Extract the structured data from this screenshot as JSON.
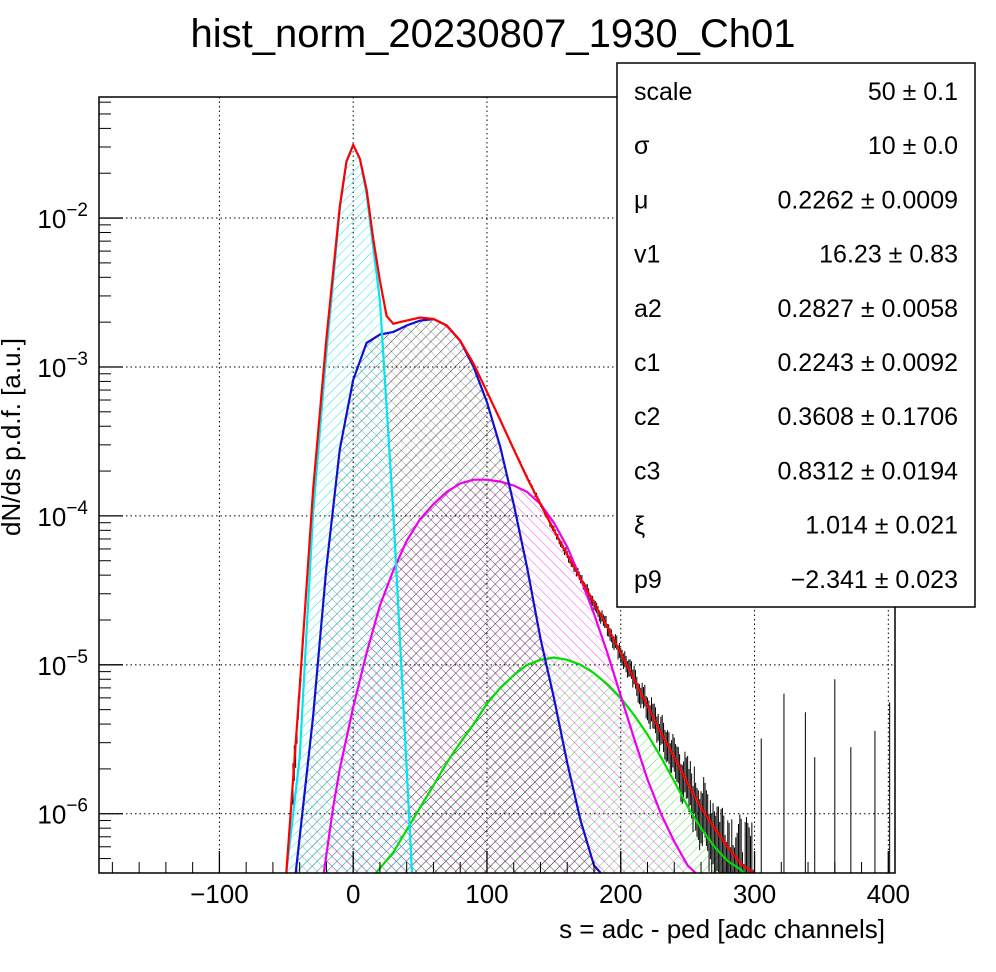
{
  "title": "hist_norm_20230807_1930_Ch01",
  "colors": {
    "total_fit": "#ff0000",
    "pedestal": "#00e5ee",
    "one_pe": "#1010d0",
    "two_pe": "#ee00ee",
    "three_pe": "#00dd00",
    "data": "#000000"
  },
  "chart_data": {
    "type": "scatter",
    "title": "hist_norm_20230807_1930_Ch01",
    "xlabel": "s = adc - ped [adc channels]",
    "ylabel": "dN/ds p.d.f. [a.u.]",
    "xlim": [
      -190,
      405
    ],
    "ylim": [
      4e-07,
      0.065
    ],
    "yscale": "log",
    "grid": true,
    "x_ticks": [
      "−100",
      "0",
      "100",
      "200",
      "300",
      "400"
    ],
    "x_tick_values": [
      -100,
      0,
      100,
      200,
      300,
      400
    ],
    "y_ticks": [
      {
        "value": 0.01,
        "base": "10",
        "exp": "−2"
      },
      {
        "value": 0.001,
        "base": "10",
        "exp": "−3"
      },
      {
        "value": 0.0001,
        "base": "10",
        "exp": "−4"
      },
      {
        "value": 1e-05,
        "base": "10",
        "exp": "−5"
      },
      {
        "value": 1e-06,
        "base": "10",
        "exp": "−6"
      }
    ],
    "series": [
      {
        "key": "pedestal",
        "x": [
          -50,
          -40,
          -30,
          -20,
          -10,
          -5,
          0,
          5,
          10,
          20,
          30,
          40,
          44
        ],
        "values": [
          4e-07,
          2.4e-06,
          0.000105,
          0.00125,
          0.0115,
          0.024,
          0.031,
          0.025,
          0.0145,
          0.0028,
          0.000105,
          2e-06,
          4e-07
        ]
      },
      {
        "key": "one_pe",
        "x": [
          -43,
          -30,
          -20,
          -10,
          0,
          10,
          20,
          30,
          40,
          50,
          60,
          70,
          80,
          90,
          100,
          110,
          120,
          130,
          140,
          150,
          160,
          170,
          180,
          185
        ],
        "values": [
          4e-07,
          4.5e-06,
          4.5e-05,
          0.00028,
          0.00082,
          0.00145,
          0.00165,
          0.00172,
          0.0019,
          0.00205,
          0.0021,
          0.0019,
          0.0015,
          0.001,
          0.00058,
          0.00029,
          0.00012,
          4.5e-05,
          1.5e-05,
          6e-06,
          2.2e-06,
          9e-07,
          4.5e-07,
          4e-07
        ]
      },
      {
        "key": "two_pe",
        "x": [
          -22,
          -15,
          -10,
          0,
          10,
          20,
          30,
          40,
          50,
          60,
          70,
          80,
          90,
          100,
          110,
          120,
          130,
          140,
          150,
          160,
          170,
          180,
          190,
          200,
          210,
          220,
          230,
          240,
          250,
          256
        ],
        "values": [
          4e-07,
          1.1e-06,
          2e-06,
          5.2e-06,
          1.2e-05,
          2.5e-05,
          4.3e-05,
          6.8e-05,
          9.5e-05,
          0.00012,
          0.000145,
          0.000165,
          0.000175,
          0.000175,
          0.00017,
          0.00016,
          0.000145,
          0.00012,
          9e-05,
          6.2e-05,
          3.8e-05,
          2.2e-05,
          1.2e-05,
          6.2e-06,
          3.2e-06,
          1.7e-06,
          1e-06,
          6.5e-07,
          4.5e-07,
          4e-07
        ]
      },
      {
        "key": "three_pe",
        "x": [
          17,
          30,
          40,
          50,
          60,
          70,
          80,
          90,
          100,
          110,
          120,
          130,
          140,
          150,
          160,
          170,
          180,
          190,
          200,
          210,
          220,
          230,
          240,
          250,
          260,
          270,
          280,
          290,
          292
        ],
        "values": [
          4e-07,
          5.5e-07,
          7.8e-07,
          1.1e-06,
          1.55e-06,
          2.2e-06,
          3e-06,
          4e-06,
          5.5e-06,
          7e-06,
          8.5e-06,
          1e-05,
          1.08e-05,
          1.12e-05,
          1.08e-05,
          1e-05,
          8.8e-06,
          7.4e-06,
          6e-06,
          4.6e-06,
          3.4e-06,
          2.4e-06,
          1.65e-06,
          1.12e-06,
          8e-07,
          6e-07,
          4.8e-07,
          4.2e-07,
          4e-07
        ]
      },
      {
        "key": "total_fit",
        "x": [
          -50,
          -40,
          -30,
          -20,
          -10,
          -5,
          0,
          5,
          10,
          15,
          20,
          25,
          30,
          35,
          40,
          50,
          60,
          70,
          80,
          90,
          100,
          110,
          120,
          130,
          140,
          150,
          160,
          170,
          180,
          190,
          200,
          210,
          220,
          230,
          240,
          250,
          260,
          270,
          280,
          290,
          300
        ],
        "values": [
          4e-07,
          7e-06,
          0.00015,
          0.00155,
          0.012,
          0.024,
          0.031,
          0.025,
          0.0155,
          0.0072,
          0.0038,
          0.0022,
          0.00195,
          0.002,
          0.00205,
          0.00215,
          0.0021,
          0.0019,
          0.0015,
          0.00105,
          0.00068,
          0.00044,
          0.00028,
          0.00018,
          0.00012,
          8e-05,
          5.5e-05,
          3.8e-05,
          2.6e-05,
          1.8e-05,
          1.2e-05,
          8e-06,
          5.3e-06,
          3.5e-06,
          2.4e-06,
          1.6e-06,
          1.1e-06,
          8e-07,
          6e-07,
          4.6e-07,
          4e-07
        ]
      }
    ]
  },
  "stats": [
    {
      "key": "scale",
      "value": "50 ± 0.1"
    },
    {
      "key": "σ",
      "value": "10 ± 0.0"
    },
    {
      "key": "μ",
      "value": "0.2262 ± 0.0009"
    },
    {
      "key": "v1",
      "value": "16.23 ± 0.83"
    },
    {
      "key": "a2",
      "value": "0.2827 ± 0.0058"
    },
    {
      "key": "c1",
      "value": "0.2243 ± 0.0092"
    },
    {
      "key": "c2",
      "value": "0.3608 ± 0.1706"
    },
    {
      "key": "c3",
      "value": "0.8312 ± 0.0194"
    },
    {
      "key": "ξ",
      "value": "1.014 ± 0.021"
    },
    {
      "key": "p9",
      "value": "−2.341 ± 0.023"
    }
  ]
}
